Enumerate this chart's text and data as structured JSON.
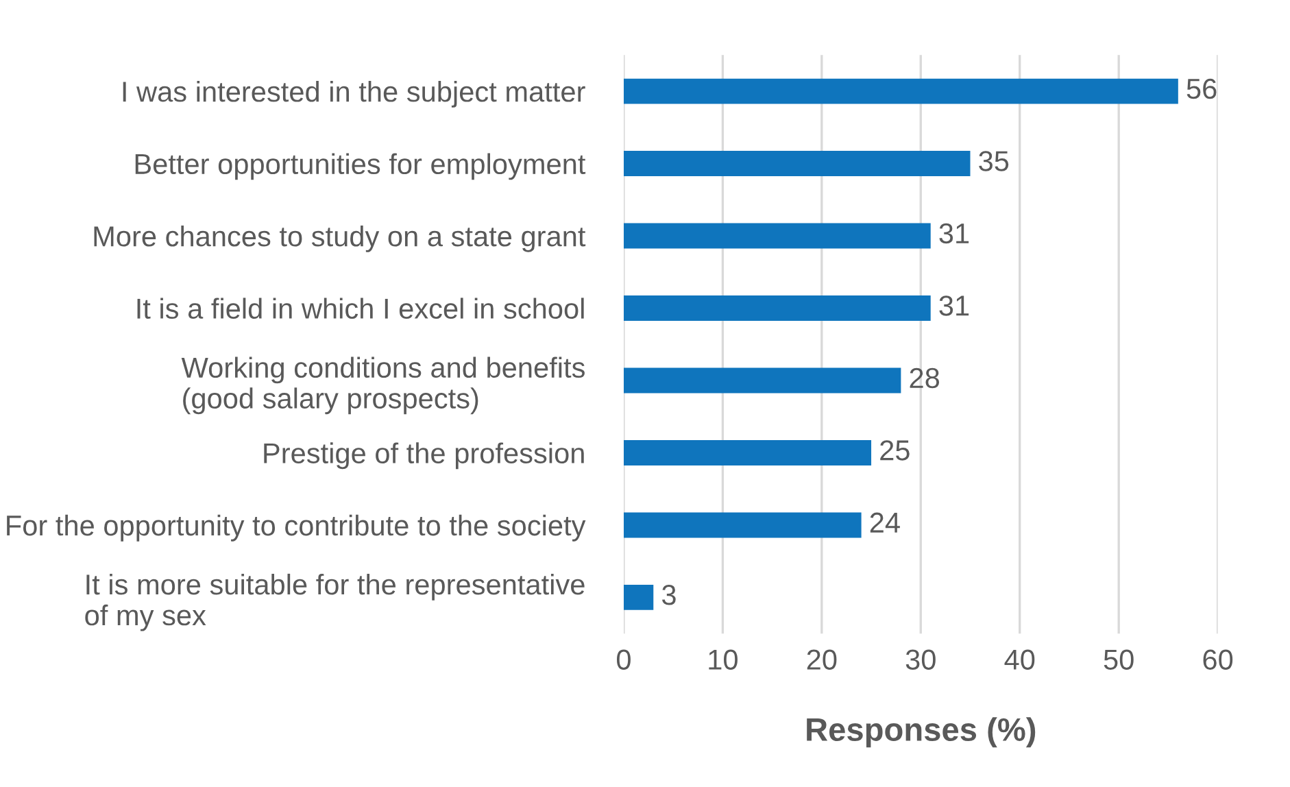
{
  "chart_data": {
    "type": "bar",
    "orientation": "horizontal",
    "xlabel": "Responses (%)",
    "categories": [
      "I was interested in the subject matter",
      "Better opportunities for employment",
      "More chances to study on a state grant",
      "It is a field in which I excel in school",
      "Working conditions and benefits\n(good salary prospects)",
      "Prestige of the profession",
      "For the opportunity to contribute to the society",
      "It is more suitable for the representative\nof my sex"
    ],
    "values": [
      56,
      35,
      31,
      31,
      28,
      25,
      24,
      3
    ],
    "color": "#0f75bd",
    "xlim": [
      0,
      60
    ],
    "xticks": [
      0,
      10,
      20,
      30,
      40,
      50,
      60
    ],
    "grid": "x",
    "data_labels": true
  }
}
